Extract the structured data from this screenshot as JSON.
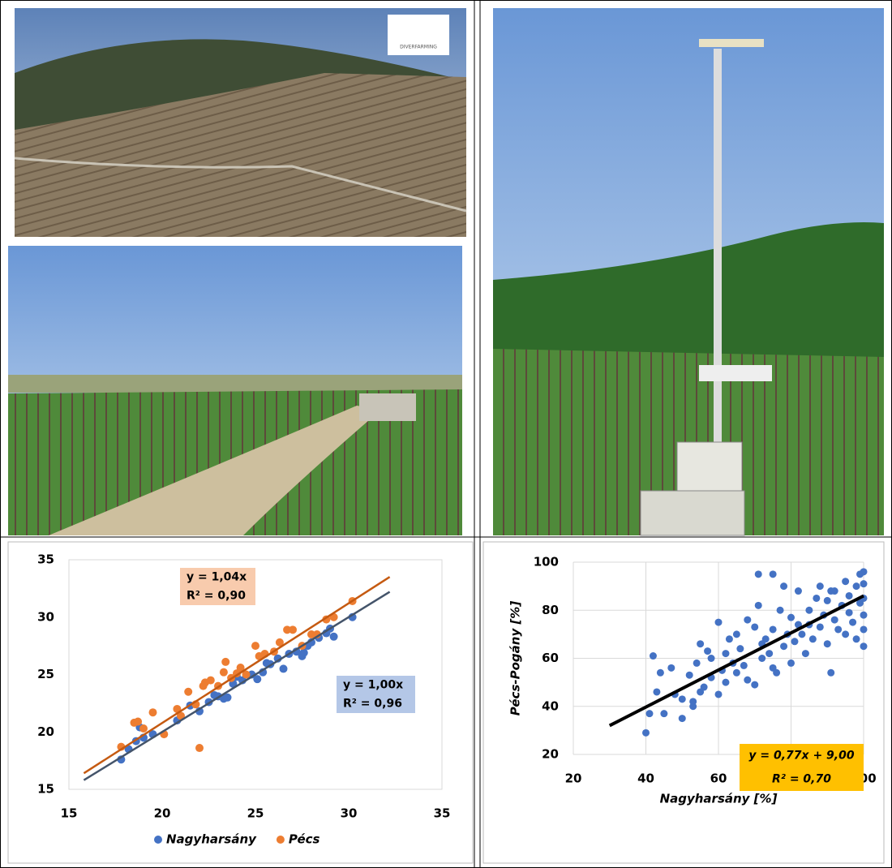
{
  "logo": "DIVERFARMING",
  "chart_data": [
    {
      "type": "scatter",
      "xlim": [
        15,
        35
      ],
      "ylim": [
        15,
        35
      ],
      "xticks": [
        15,
        20,
        25,
        30,
        35
      ],
      "yticks": [
        15,
        20,
        25,
        30,
        35
      ],
      "grid": false,
      "legend": "bottom",
      "series": [
        {
          "name": "Nagyharsány",
          "color": "#4472c4",
          "x": [
            17.8,
            18.2,
            18.6,
            19,
            19.5,
            20.8,
            21.5,
            22,
            22.5,
            23,
            23.3,
            23.5,
            23.8,
            24.3,
            24.8,
            25.1,
            25.4,
            25.8,
            26.5,
            26.8,
            27.2,
            27.5,
            27.8,
            28,
            28.4,
            28.8,
            29,
            29.2,
            30.2,
            18.8,
            22.8,
            24,
            25.6,
            26.2,
            27.6
          ],
          "values": [
            17.6,
            18.5,
            19.2,
            19.5,
            19.8,
            21,
            22.3,
            21.8,
            22.6,
            23.1,
            22.9,
            23,
            24.2,
            24.5,
            25,
            24.6,
            25.2,
            25.9,
            25.5,
            26.8,
            27,
            26.6,
            27.5,
            27.8,
            28.2,
            28.6,
            29,
            28.3,
            30,
            20.4,
            23.2,
            24.8,
            26,
            26.4,
            26.9
          ],
          "trendline": {
            "x": [
              15.8,
              32.2
            ],
            "y": [
              15.8,
              32.2
            ],
            "color": "#44546a"
          }
        },
        {
          "name": "Pécs",
          "color": "#ed7d31",
          "x": [
            17.8,
            18.5,
            18.7,
            19,
            19.5,
            20.1,
            20.8,
            21,
            21.4,
            21.8,
            22,
            22.3,
            22.6,
            23,
            23.3,
            23.4,
            23.7,
            24.2,
            24.5,
            25,
            25.2,
            25.5,
            26,
            26.7,
            27,
            27.5,
            28,
            28.3,
            28.8,
            29.2,
            30.2,
            26.3,
            24,
            22.2
          ],
          "values": [
            18.7,
            20.8,
            20.9,
            20.3,
            21.7,
            19.8,
            22,
            21.4,
            23.5,
            22.4,
            18.6,
            24.3,
            24.5,
            24,
            25.2,
            26.1,
            24.7,
            25.6,
            25,
            27.5,
            26.6,
            26.8,
            27,
            28.9,
            28.9,
            27.5,
            28.5,
            28.5,
            29.8,
            30,
            31.4,
            27.8,
            25.1,
            24
          ],
          "trendline": {
            "x": [
              15.8,
              32.2
            ],
            "y": [
              16.4,
              33.5
            ],
            "color": "#c55a11"
          }
        }
      ],
      "annotations": [
        {
          "text": [
            "y = 1,04x",
            "R² = 0,90"
          ],
          "color": "#f8cbad"
        },
        {
          "text": [
            "y = 1,00x",
            "R² = 0,96"
          ],
          "color": "#b4c7e7"
        }
      ]
    },
    {
      "type": "scatter",
      "xlabel": "Nagyharsány [%]",
      "ylabel": "Pécs-Pogány [%]",
      "xlim": [
        20,
        100
      ],
      "ylim": [
        20,
        100
      ],
      "xticks": [
        20,
        40,
        60,
        80,
        100
      ],
      "yticks": [
        20,
        40,
        60,
        80,
        100
      ],
      "grid": true,
      "series": [
        {
          "color": "#4472c4",
          "x": [
            40,
            41,
            42,
            43,
            45,
            47,
            48,
            50,
            50,
            52,
            53,
            54,
            55,
            55,
            56,
            57,
            58,
            58,
            60,
            60,
            61,
            62,
            62,
            63,
            64,
            65,
            65,
            66,
            67,
            68,
            68,
            70,
            70,
            71,
            72,
            72,
            73,
            74,
            75,
            75,
            76,
            77,
            78,
            78,
            79,
            80,
            80,
            81,
            82,
            83,
            84,
            85,
            85,
            86,
            87,
            88,
            88,
            89,
            90,
            90,
            91,
            92,
            92,
            93,
            94,
            95,
            95,
            96,
            96,
            97,
            98,
            98,
            99,
            99,
            100,
            100,
            100,
            100,
            100,
            100,
            71,
            75,
            82,
            91,
            44,
            53
          ],
          "values": [
            29,
            37,
            61,
            46,
            37,
            56,
            45,
            43,
            35,
            53,
            40,
            58,
            46,
            66,
            48,
            63,
            52,
            60,
            45,
            75,
            55,
            62,
            50,
            68,
            58,
            70,
            54,
            64,
            57,
            76,
            51,
            49,
            73,
            95,
            66,
            60,
            68,
            62,
            72,
            95,
            54,
            80,
            65,
            90,
            70,
            77,
            58,
            67,
            88,
            70,
            62,
            80,
            74,
            68,
            85,
            73,
            90,
            78,
            66,
            84,
            54,
            76,
            88,
            72,
            82,
            92,
            70,
            79,
            86,
            75,
            90,
            68,
            83,
            95,
            65,
            72,
            78,
            85,
            91,
            96,
            82,
            56,
            74,
            88,
            54,
            42
          ]
        }
      ],
      "trendline": {
        "x": [
          30,
          100
        ],
        "y": [
          32,
          86
        ],
        "color": "#000000"
      },
      "annotations": [
        {
          "text": [
            "y = 0,77x + 9,00",
            "R² = 0,70"
          ],
          "color": "#ffc000"
        }
      ]
    }
  ]
}
